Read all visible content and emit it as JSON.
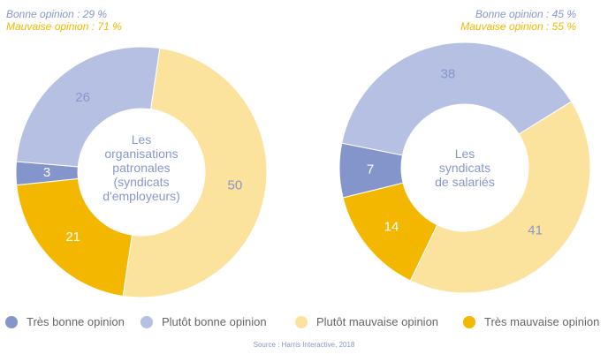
{
  "summaries": [
    {
      "good": "Bonne opinion : 29 %",
      "bad": "Mauvaise opinion : 71 %"
    },
    {
      "good": "Bonne opinion : 45 %",
      "bad": "Mauvaise opinion : 55 %"
    }
  ],
  "center_labels": [
    [
      "Les",
      "organisations",
      "patronales",
      "(syndicats",
      "d'employeurs)"
    ],
    [
      "Les",
      "syndicats",
      "de salariés"
    ]
  ],
  "legend": [
    {
      "label": "Très bonne opinion",
      "color": "#8395cb"
    },
    {
      "label": "Plutôt bonne opinion",
      "color": "#b5c0e2"
    },
    {
      "label": "Plutôt mauvaise opinion",
      "color": "#fbe39d"
    },
    {
      "label": "Très mauvaise opinion",
      "color": "#f4b700"
    }
  ],
  "source": "Source : Harris Interactive, 2018",
  "chart_data": [
    {
      "type": "pie",
      "categories": [
        "Très bonne opinion",
        "Plutôt bonne opinion",
        "Plutôt mauvaise opinion",
        "Très mauvaise opinion"
      ],
      "values": [
        3,
        26,
        50,
        21
      ],
      "label_colors": [
        "#ffffff",
        "#8797cc",
        "#8797cc",
        "#ffffff"
      ]
    },
    {
      "type": "pie",
      "categories": [
        "Très bonne opinion",
        "Plutôt bonne opinion",
        "Plutôt mauvaise opinion",
        "Très mauvaise opinion"
      ],
      "values": [
        7,
        38,
        41,
        14
      ],
      "label_colors": [
        "#ffffff",
        "#8797cc",
        "#8797cc",
        "#ffffff"
      ]
    }
  ]
}
